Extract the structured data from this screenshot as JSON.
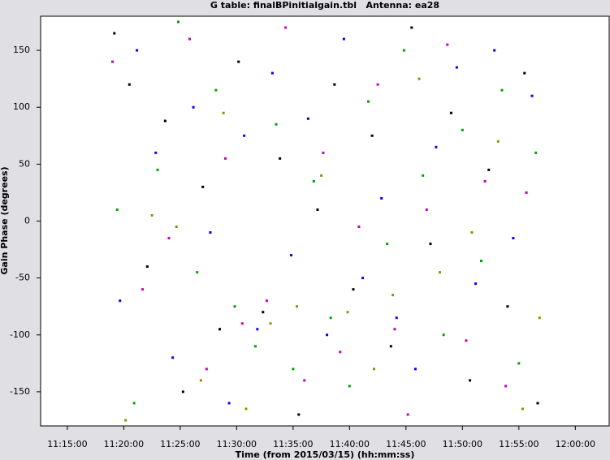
{
  "chart_data": {
    "type": "scatter",
    "title": "G table: finalBPinitialgain.tbl   Antenna: ea28",
    "x_label": "Time (from 2015/03/15) (hh:mm:ss)",
    "y_label": "Gain Phase (degrees)",
    "xlim": [
      "11:12:38",
      "12:03:00"
    ],
    "xticks": [
      "11:15:00",
      "11:20:00",
      "11:25:00",
      "11:30:00",
      "11:35:00",
      "11:40:00",
      "11:45:00",
      "11:50:00",
      "11:55:00",
      "12:00:00"
    ],
    "ylim": [
      -180,
      180
    ],
    "yticks": [
      -150,
      -100,
      -50,
      0,
      50,
      100,
      150
    ],
    "series": [
      {
        "color": "#000000",
        "x": [
          "11:19:10",
          "11:20:30",
          "11:22:05",
          "11:23:40",
          "11:25:15",
          "11:27:00",
          "11:28:30",
          "11:30:10",
          "11:32:20",
          "11:33:50",
          "11:35:30",
          "11:37:10",
          "11:38:40",
          "11:40:20",
          "11:42:00",
          "11:43:40",
          "11:45:30",
          "11:47:10",
          "11:49:00",
          "11:50:40",
          "11:52:20",
          "11:54:00",
          "11:55:30",
          "11:56:40"
        ],
        "values": [
          165,
          120,
          -40,
          88,
          -150,
          30,
          -95,
          140,
          -80,
          55,
          -170,
          10,
          120,
          -60,
          75,
          -110,
          170,
          -20,
          95,
          -140,
          45,
          -75,
          130,
          -160
        ]
      },
      {
        "color": "#0000ff",
        "x": [
          "11:19:40",
          "11:21:10",
          "11:22:50",
          "11:24:20",
          "11:26:10",
          "11:27:40",
          "11:29:20",
          "11:30:40",
          "11:31:50",
          "11:33:10",
          "11:34:50",
          "11:36:20",
          "11:38:00",
          "11:39:30",
          "11:41:10",
          "11:42:50",
          "11:44:10",
          "11:45:50",
          "11:47:40",
          "11:49:30",
          "11:51:10",
          "11:52:50",
          "11:54:30",
          "11:56:10"
        ],
        "values": [
          -70,
          150,
          60,
          -120,
          100,
          -10,
          -160,
          75,
          -95,
          130,
          -30,
          90,
          -100,
          160,
          -50,
          20,
          -85,
          -130,
          65,
          135,
          -55,
          150,
          -15,
          110
        ]
      },
      {
        "color": "#00a000",
        "x": [
          "11:19:25",
          "11:20:55",
          "11:23:00",
          "11:24:50",
          "11:26:30",
          "11:28:10",
          "11:29:50",
          "11:31:40",
          "11:33:30",
          "11:35:00",
          "11:36:50",
          "11:38:20",
          "11:40:00",
          "11:41:40",
          "11:43:20",
          "11:44:50",
          "11:46:30",
          "11:48:20",
          "11:50:00",
          "11:51:40",
          "11:53:30",
          "11:55:00",
          "11:56:30"
        ],
        "values": [
          10,
          -160,
          45,
          175,
          -45,
          115,
          -75,
          -110,
          85,
          -130,
          35,
          -85,
          -145,
          105,
          -20,
          150,
          40,
          -100,
          80,
          -35,
          115,
          -125,
          60
        ]
      },
      {
        "color": "#c000c0",
        "x": [
          "11:19:00",
          "11:21:40",
          "11:24:00",
          "11:25:50",
          "11:27:20",
          "11:29:00",
          "11:30:30",
          "11:32:40",
          "11:34:20",
          "11:36:00",
          "11:37:40",
          "11:39:10",
          "11:40:50",
          "11:42:30",
          "11:44:00",
          "11:45:10",
          "11:46:50",
          "11:48:40",
          "11:50:20",
          "11:52:00",
          "11:53:50",
          "11:55:40"
        ],
        "values": [
          140,
          -60,
          -15,
          160,
          -130,
          55,
          -90,
          -70,
          170,
          -140,
          60,
          -115,
          -5,
          120,
          -95,
          -170,
          10,
          155,
          -105,
          35,
          -145,
          25
        ]
      },
      {
        "color": "#909000",
        "x": [
          "11:20:10",
          "11:22:30",
          "11:24:40",
          "11:26:50",
          "11:28:50",
          "11:30:50",
          "11:33:00",
          "11:35:20",
          "11:37:30",
          "11:39:50",
          "11:42:10",
          "11:43:50",
          "11:46:10",
          "11:48:00",
          "11:50:50",
          "11:53:10",
          "11:55:20",
          "11:56:50"
        ],
        "values": [
          -175,
          5,
          -5,
          -140,
          95,
          -165,
          -90,
          -75,
          40,
          -80,
          -130,
          -65,
          125,
          -45,
          -10,
          70,
          -165,
          -85
        ]
      }
    ]
  }
}
